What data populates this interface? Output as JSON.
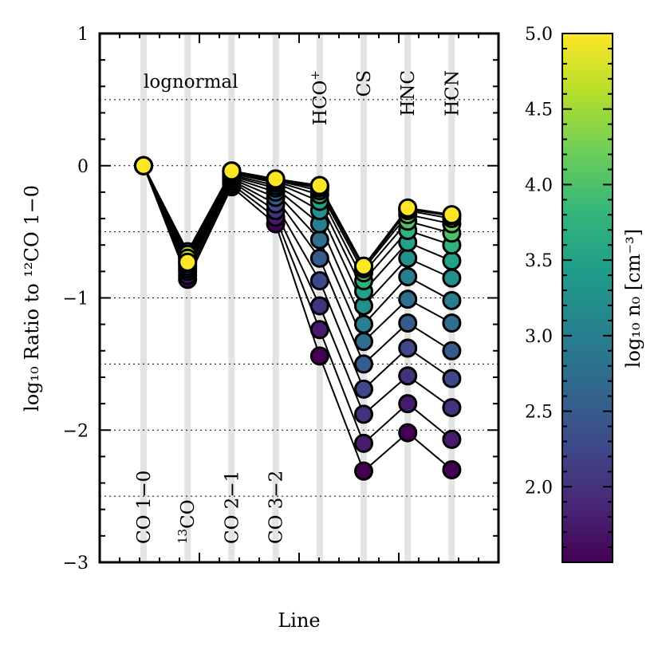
{
  "chart_data": {
    "type": "line",
    "title": "",
    "annotation": "lognormal",
    "xlabel": "Line",
    "ylabel": "log₁₀ Ratio to ¹²CO 1−0",
    "ylim": [
      -3,
      1
    ],
    "yticks": [
      1,
      0,
      -1,
      -2,
      -3
    ],
    "yticklabels": [
      "1",
      "0",
      "−1",
      "−2",
      "−3"
    ],
    "grid": "horizontal dotted at 0.5 steps",
    "categories": [
      "CO 1−0",
      "13CO",
      "CO 2−1",
      "CO 3−2",
      "HCO+",
      "CS",
      "HNC",
      "HCN"
    ],
    "category_labels": [
      {
        "main": "CO 1−0",
        "sup": "",
        "placement": "bottom"
      },
      {
        "main": "CO",
        "sup": "13",
        "placement": "bottom"
      },
      {
        "main": "CO 2−1",
        "sup": "",
        "placement": "bottom"
      },
      {
        "main": "CO 3−2",
        "sup": "",
        "placement": "bottom"
      },
      {
        "main": "HCO",
        "sup": "+",
        "placement": "top"
      },
      {
        "main": "CS",
        "sup": "",
        "placement": "top"
      },
      {
        "main": "HNC",
        "sup": "",
        "placement": "top"
      },
      {
        "main": "HCN",
        "sup": "",
        "placement": "top"
      }
    ],
    "colorbar": {
      "label": "log₁₀ n₀ [cm⁻³]",
      "range": [
        1.5,
        5.0
      ],
      "ticks": [
        5.0,
        4.5,
        4.0,
        3.5,
        3.0,
        2.5,
        2.0
      ],
      "ticklabels": [
        "5.0",
        "4.5",
        "4.0",
        "3.5",
        "3.0",
        "2.5",
        "2.0"
      ],
      "colormap": "viridis",
      "colors": [
        "#440154",
        "#482878",
        "#3e4a89",
        "#31688e",
        "#26828e",
        "#1f9e89",
        "#35b779",
        "#6ece58",
        "#b5de2b",
        "#fde725"
      ]
    },
    "series": [
      {
        "n0": 1.5,
        "values": [
          0,
          -0.86,
          -0.16,
          -0.44,
          -1.44,
          -2.31,
          -2.02,
          -2.3
        ]
      },
      {
        "n0": 1.75,
        "values": [
          0,
          -0.83,
          -0.14,
          -0.39,
          -1.24,
          -2.1,
          -1.8,
          -2.07
        ]
      },
      {
        "n0": 2.0,
        "values": [
          0,
          -0.8,
          -0.12,
          -0.34,
          -1.06,
          -1.88,
          -1.59,
          -1.83
        ]
      },
      {
        "n0": 2.25,
        "values": [
          0,
          -0.78,
          -0.11,
          -0.29,
          -0.87,
          -1.69,
          -1.38,
          -1.61
        ]
      },
      {
        "n0": 2.5,
        "values": [
          0,
          -0.76,
          -0.1,
          -0.24,
          -0.7,
          -1.5,
          -1.19,
          -1.4
        ]
      },
      {
        "n0": 2.75,
        "values": [
          0,
          -0.74,
          -0.09,
          -0.2,
          -0.56,
          -1.33,
          -1.01,
          -1.19
        ]
      },
      {
        "n0": 3.0,
        "values": [
          0,
          -0.72,
          -0.08,
          -0.17,
          -0.44,
          -1.2,
          -0.84,
          -1.02
        ]
      },
      {
        "n0": 3.25,
        "values": [
          0,
          -0.7,
          -0.07,
          -0.15,
          -0.34,
          -1.06,
          -0.7,
          -0.85
        ]
      },
      {
        "n0": 3.5,
        "values": [
          0,
          -0.68,
          -0.06,
          -0.13,
          -0.27,
          -0.95,
          -0.58,
          -0.72
        ]
      },
      {
        "n0": 3.75,
        "values": [
          0,
          -0.67,
          -0.05,
          -0.12,
          -0.22,
          -0.87,
          -0.49,
          -0.6
        ]
      },
      {
        "n0": 4.0,
        "values": [
          0,
          -0.66,
          -0.05,
          -0.11,
          -0.19,
          -0.81,
          -0.42,
          -0.51
        ]
      },
      {
        "n0": 4.25,
        "values": [
          0,
          -0.65,
          -0.04,
          -0.11,
          -0.17,
          -0.78,
          -0.37,
          -0.44
        ]
      },
      {
        "n0": 4.5,
        "values": [
          0,
          -0.67,
          -0.04,
          -0.1,
          -0.16,
          -0.77,
          -0.34,
          -0.4
        ]
      },
      {
        "n0": 4.75,
        "values": [
          0,
          -0.7,
          -0.04,
          -0.1,
          -0.15,
          -0.76,
          -0.33,
          -0.38
        ]
      },
      {
        "n0": 5.0,
        "values": [
          0,
          -0.73,
          -0.04,
          -0.1,
          -0.15,
          -0.76,
          -0.32,
          -0.37
        ]
      }
    ]
  }
}
